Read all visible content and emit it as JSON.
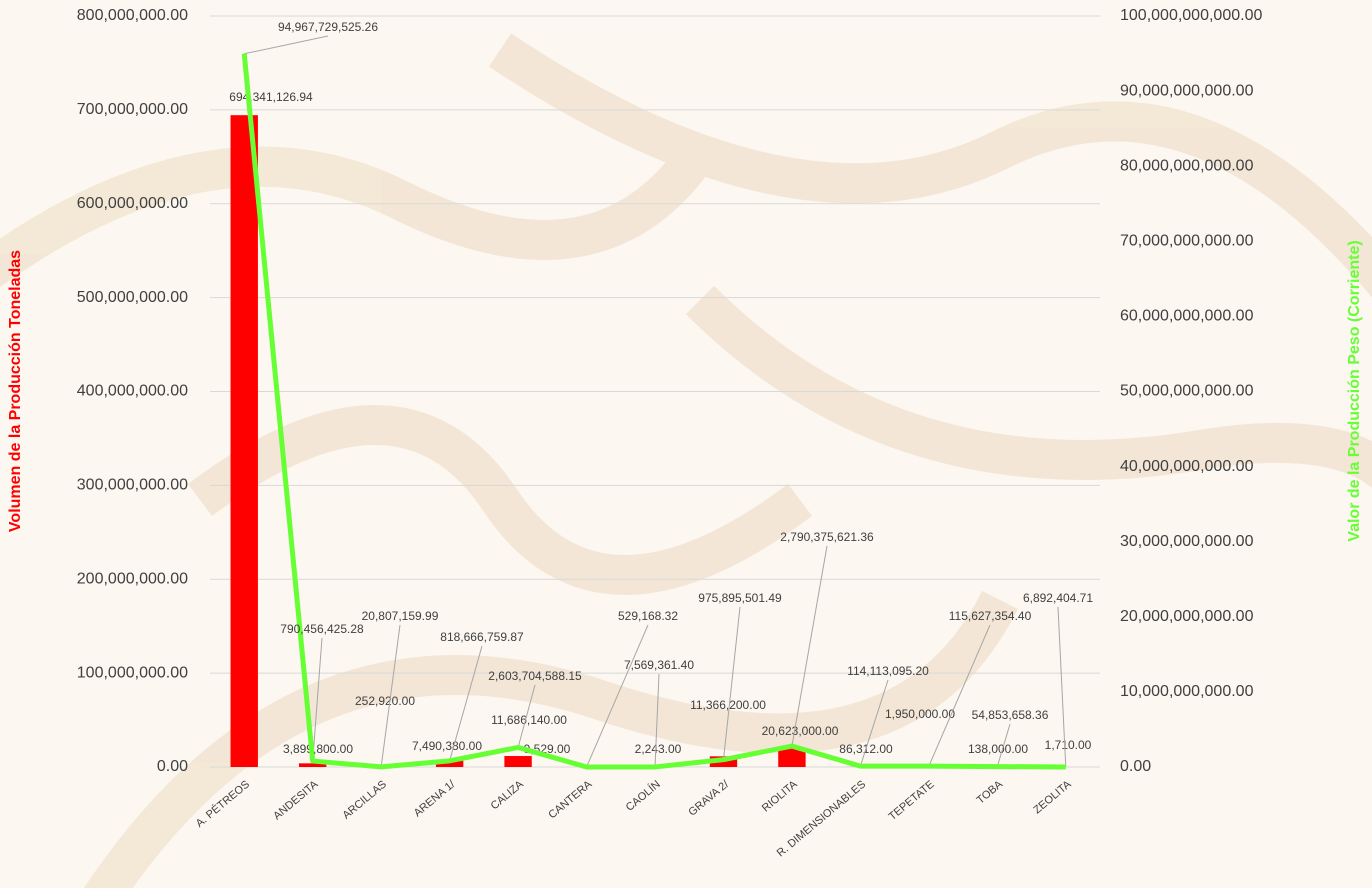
{
  "chart_data": {
    "type": "bar-line",
    "y_label": "Volumen de la Producción Toneladas",
    "y2_label": "Valor de la Producción Peso (Corriente)",
    "categories": [
      "A. PÉTREOS",
      "ANDESITA",
      "ARCILLAS",
      "ARENA 1/",
      "CALIZA",
      "CANTERA",
      "CAOLÍN",
      "GRAVA 2/",
      "RIOLITA",
      "R. DIMENSIONABLES",
      "TEPETATE",
      "TOBA",
      "ZEOLITA"
    ],
    "series": [
      {
        "name": "Volumen de la Producción Toneladas",
        "type": "bar",
        "color": "#ff0000",
        "values": [
          694341126.94,
          3899800.0,
          252920.0,
          7490380.0,
          11686140.0,
          9529.0,
          2243.0,
          11366200.0,
          20623000.0,
          86312.0,
          1950000.0,
          138000.0,
          1710.0
        ],
        "value_labels": [
          "694,341,126.94",
          "3,899,800.00",
          "252,920.00",
          "7,490,380.00",
          "11,686,140.00",
          "9,529.00",
          "2,243.00",
          "11,366,200.00",
          "20,623,000.00",
          "86,312.00",
          "1,950,000.00",
          "138,000.00",
          "1,710.00"
        ]
      },
      {
        "name": "Valor de la Producción Peso (Corriente)",
        "type": "line",
        "axis": "y2",
        "color": "#66ff33",
        "values": [
          94967729525.26,
          790456425.28,
          20807159.99,
          818666759.87,
          2603704588.15,
          529168.32,
          7569361.4,
          975895501.49,
          2790375621.36,
          114113095.2,
          115627354.4,
          54853658.36,
          6892404.71
        ],
        "value_labels": [
          "94,967,729,525.26",
          "790,456,425.28",
          "20,807,159.99",
          "818,666,759.87",
          "2,603,704,588.15",
          "529,168.32",
          "7,569,361.40",
          "975,895,501.49",
          "2,790,375,621.36",
          "114,113,095.20",
          "115,627,354.40",
          "54,853,658.36",
          "6,892,404.71"
        ]
      }
    ],
    "ylim": [
      0,
      800000000
    ],
    "yticks": [
      {
        "value": 0,
        "label": "0.00"
      },
      {
        "value": 100000000,
        "label": "100,000,000.00"
      },
      {
        "value": 200000000,
        "label": "200,000,000.00"
      },
      {
        "value": 300000000,
        "label": "300,000,000.00"
      },
      {
        "value": 400000000,
        "label": "400,000,000.00"
      },
      {
        "value": 500000000,
        "label": "500,000,000.00"
      },
      {
        "value": 600000000,
        "label": "600,000,000.00"
      },
      {
        "value": 700000000,
        "label": "700,000,000.00"
      },
      {
        "value": 800000000,
        "label": "800,000,000.00"
      }
    ],
    "y2lim": [
      0,
      100000000000
    ],
    "y2ticks": [
      {
        "value": 0,
        "label": "0.00"
      },
      {
        "value": 10000000000,
        "label": "10,000,000,000.00"
      },
      {
        "value": 20000000000,
        "label": "20,000,000,000.00"
      },
      {
        "value": 30000000000,
        "label": "30,000,000,000.00"
      },
      {
        "value": 40000000000,
        "label": "40,000,000,000.00"
      },
      {
        "value": 50000000000,
        "label": "50,000,000,000.00"
      },
      {
        "value": 60000000000,
        "label": "60,000,000,000.00"
      },
      {
        "value": 70000000000,
        "label": "70,000,000,000.00"
      },
      {
        "value": 80000000000,
        "label": "80,000,000,000.00"
      },
      {
        "value": 90000000000,
        "label": "90,000,000,000.00"
      },
      {
        "value": 100000000000,
        "label": "100,000,000,000.00"
      }
    ],
    "grid": true
  }
}
